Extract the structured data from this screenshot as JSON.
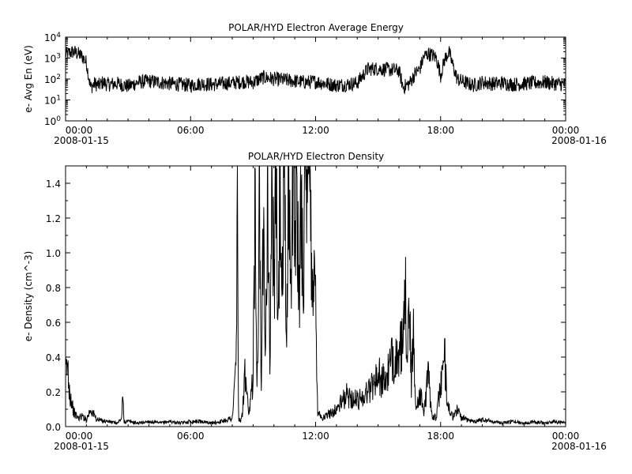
{
  "chart_data": [
    {
      "type": "line",
      "title": "POLAR/HYD  Electron Average Energy",
      "ylabel": "e- Avg En (eV)",
      "xlabel": "",
      "yscale": "log",
      "ylim": [
        1,
        10000
      ],
      "xlim_hours": [
        0,
        24
      ],
      "y_ticks": [
        {
          "value": 1,
          "base": "10",
          "exp": "0"
        },
        {
          "value": 10,
          "base": "10",
          "exp": "1"
        },
        {
          "value": 100,
          "base": "10",
          "exp": "2"
        },
        {
          "value": 1000,
          "base": "10",
          "exp": "3"
        },
        {
          "value": 10000,
          "base": "10",
          "exp": "4"
        }
      ],
      "x_ticks": [
        {
          "hour": 0,
          "label": "00:00",
          "date": "2008-01-15"
        },
        {
          "hour": 6,
          "label": "06:00",
          "date": ""
        },
        {
          "hour": 12,
          "label": "12:00",
          "date": ""
        },
        {
          "hour": 18,
          "label": "18:00",
          "date": ""
        },
        {
          "hour": 24,
          "label": "00:00",
          "date": "2008-01-16"
        }
      ],
      "x_hours": [
        0.0,
        0.2,
        0.4,
        0.6,
        0.8,
        1.0,
        1.2,
        1.4,
        1.6,
        1.8,
        2.0,
        2.5,
        3.0,
        3.5,
        4.0,
        4.5,
        5.0,
        5.5,
        6.0,
        6.5,
        7.0,
        7.5,
        8.0,
        8.5,
        9.0,
        9.5,
        10.0,
        10.5,
        11.0,
        11.5,
        12.0,
        12.5,
        13.0,
        13.5,
        14.0,
        14.5,
        15.0,
        15.5,
        16.0,
        16.2,
        16.5,
        16.8,
        17.0,
        17.2,
        17.4,
        17.6,
        17.8,
        18.0,
        18.2,
        18.4,
        18.6,
        18.8,
        19.0,
        19.3,
        19.6,
        20.0,
        20.5,
        21.0,
        21.5,
        22.0,
        22.5,
        23.0,
        23.5,
        24.0
      ],
      "y_values": [
        1500,
        1800,
        2000,
        1600,
        1200,
        600,
        40,
        60,
        50,
        70,
        55,
        60,
        45,
        70,
        80,
        70,
        60,
        55,
        50,
        60,
        55,
        60,
        65,
        75,
        70,
        120,
        100,
        90,
        80,
        70,
        75,
        60,
        50,
        55,
        65,
        300,
        310,
        280,
        250,
        40,
        60,
        200,
        300,
        1200,
        1600,
        1400,
        1000,
        150,
        900,
        2000,
        400,
        100,
        80,
        60,
        50,
        70,
        60,
        65,
        55,
        60,
        65,
        70,
        60,
        55
      ]
    },
    {
      "type": "line",
      "title": "POLAR/HYD  Electron Density",
      "ylabel": "e- Density (cm^-3)",
      "xlabel": "",
      "ylim": [
        0,
        1.5
      ],
      "xlim_hours": [
        0,
        24
      ],
      "y_ticks": [
        "0.0",
        "0.2",
        "0.4",
        "0.6",
        "0.8",
        "1.0",
        "1.2",
        "1.4"
      ],
      "x_ticks": [
        {
          "hour": 0,
          "label": "00:00",
          "date": "2008-01-15"
        },
        {
          "hour": 6,
          "label": "06:00",
          "date": ""
        },
        {
          "hour": 12,
          "label": "12:00",
          "date": ""
        },
        {
          "hour": 18,
          "label": "18:00",
          "date": ""
        },
        {
          "hour": 24,
          "label": "00:00",
          "date": "2008-01-16"
        }
      ],
      "x_hours": [
        0.0,
        0.1,
        0.2,
        0.4,
        0.6,
        0.8,
        1.0,
        1.2,
        1.5,
        2.0,
        2.5,
        2.7,
        2.75,
        2.8,
        3.0,
        3.5,
        4.0,
        4.5,
        5.0,
        5.5,
        6.0,
        6.5,
        7.0,
        7.5,
        8.0,
        8.1,
        8.2,
        8.25,
        8.3,
        8.4,
        8.5,
        8.6,
        8.8,
        9.0,
        9.1,
        9.2,
        9.3,
        9.4,
        9.5,
        9.6,
        9.7,
        9.8,
        9.9,
        10.0,
        10.1,
        10.2,
        10.3,
        10.4,
        10.5,
        10.6,
        10.7,
        10.8,
        10.9,
        11.0,
        11.1,
        11.2,
        11.3,
        11.4,
        11.5,
        11.6,
        11.7,
        11.8,
        11.9,
        12.0,
        12.1,
        12.3,
        12.5,
        13.0,
        13.5,
        14.0,
        14.5,
        15.0,
        15.3,
        15.6,
        15.9,
        16.0,
        16.1,
        16.2,
        16.3,
        16.4,
        16.5,
        16.6,
        16.7,
        16.8,
        17.0,
        17.2,
        17.4,
        17.6,
        17.8,
        18.0,
        18.1,
        18.2,
        18.3,
        18.4,
        18.6,
        18.8,
        19.0,
        19.5,
        20.0,
        20.5,
        21.0,
        21.5,
        22.0,
        22.5,
        23.0,
        23.5,
        24.0
      ],
      "y_values": [
        0.3,
        0.35,
        0.2,
        0.08,
        0.05,
        0.06,
        0.04,
        0.1,
        0.04,
        0.03,
        0.02,
        0.05,
        0.19,
        0.03,
        0.03,
        0.02,
        0.03,
        0.02,
        0.03,
        0.02,
        0.03,
        0.03,
        0.02,
        0.03,
        0.05,
        0.2,
        0.45,
        1.5,
        0.05,
        0.02,
        0.1,
        0.3,
        0.05,
        0.3,
        1.5,
        0.2,
        1.5,
        0.1,
        1.5,
        0.5,
        1.5,
        0.3,
        1.5,
        0.8,
        1.5,
        0.5,
        1.5,
        0.7,
        1.5,
        0.4,
        1.5,
        0.9,
        1.5,
        1.2,
        1.5,
        0.6,
        1.5,
        0.9,
        1.5,
        1.1,
        1.5,
        1.0,
        0.9,
        0.7,
        0.1,
        0.05,
        0.06,
        0.1,
        0.18,
        0.15,
        0.2,
        0.3,
        0.25,
        0.35,
        0.45,
        0.3,
        0.5,
        0.4,
        0.75,
        0.5,
        0.7,
        0.2,
        0.6,
        0.1,
        0.2,
        0.08,
        0.3,
        0.06,
        0.05,
        0.25,
        0.3,
        0.38,
        0.2,
        0.1,
        0.05,
        0.1,
        0.05,
        0.03,
        0.04,
        0.03,
        0.02,
        0.03,
        0.02,
        0.03,
        0.02,
        0.03,
        0.02
      ]
    }
  ]
}
